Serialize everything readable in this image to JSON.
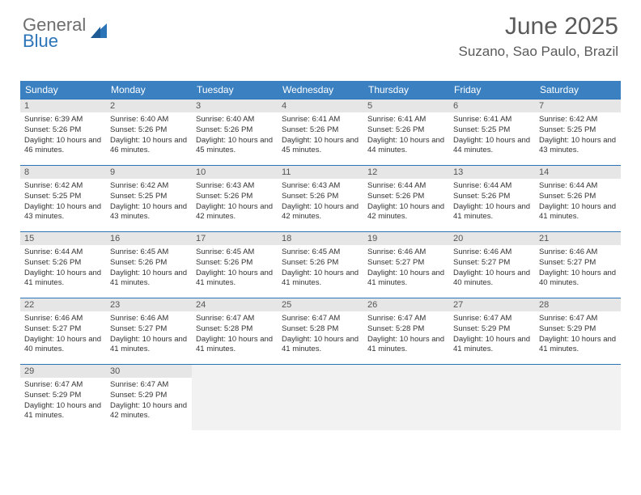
{
  "logo": {
    "text1": "General",
    "text2": "Blue"
  },
  "title": "June 2025",
  "location": "Suzano, Sao Paulo, Brazil",
  "colors": {
    "header_bg": "#3b81c2",
    "header_text": "#ffffff",
    "border": "#2b74b8",
    "daynum_bg": "#e6e6e6",
    "empty_bg": "#f2f2f2",
    "title_color": "#5a5a5a"
  },
  "weekdays": [
    "Sunday",
    "Monday",
    "Tuesday",
    "Wednesday",
    "Thursday",
    "Friday",
    "Saturday"
  ],
  "weeks": [
    [
      {
        "n": "1",
        "sr": "Sunrise: 6:39 AM",
        "ss": "Sunset: 5:26 PM",
        "dl": "Daylight: 10 hours and 46 minutes."
      },
      {
        "n": "2",
        "sr": "Sunrise: 6:40 AM",
        "ss": "Sunset: 5:26 PM",
        "dl": "Daylight: 10 hours and 46 minutes."
      },
      {
        "n": "3",
        "sr": "Sunrise: 6:40 AM",
        "ss": "Sunset: 5:26 PM",
        "dl": "Daylight: 10 hours and 45 minutes."
      },
      {
        "n": "4",
        "sr": "Sunrise: 6:41 AM",
        "ss": "Sunset: 5:26 PM",
        "dl": "Daylight: 10 hours and 45 minutes."
      },
      {
        "n": "5",
        "sr": "Sunrise: 6:41 AM",
        "ss": "Sunset: 5:26 PM",
        "dl": "Daylight: 10 hours and 44 minutes."
      },
      {
        "n": "6",
        "sr": "Sunrise: 6:41 AM",
        "ss": "Sunset: 5:25 PM",
        "dl": "Daylight: 10 hours and 44 minutes."
      },
      {
        "n": "7",
        "sr": "Sunrise: 6:42 AM",
        "ss": "Sunset: 5:25 PM",
        "dl": "Daylight: 10 hours and 43 minutes."
      }
    ],
    [
      {
        "n": "8",
        "sr": "Sunrise: 6:42 AM",
        "ss": "Sunset: 5:25 PM",
        "dl": "Daylight: 10 hours and 43 minutes."
      },
      {
        "n": "9",
        "sr": "Sunrise: 6:42 AM",
        "ss": "Sunset: 5:25 PM",
        "dl": "Daylight: 10 hours and 43 minutes."
      },
      {
        "n": "10",
        "sr": "Sunrise: 6:43 AM",
        "ss": "Sunset: 5:26 PM",
        "dl": "Daylight: 10 hours and 42 minutes."
      },
      {
        "n": "11",
        "sr": "Sunrise: 6:43 AM",
        "ss": "Sunset: 5:26 PM",
        "dl": "Daylight: 10 hours and 42 minutes."
      },
      {
        "n": "12",
        "sr": "Sunrise: 6:44 AM",
        "ss": "Sunset: 5:26 PM",
        "dl": "Daylight: 10 hours and 42 minutes."
      },
      {
        "n": "13",
        "sr": "Sunrise: 6:44 AM",
        "ss": "Sunset: 5:26 PM",
        "dl": "Daylight: 10 hours and 41 minutes."
      },
      {
        "n": "14",
        "sr": "Sunrise: 6:44 AM",
        "ss": "Sunset: 5:26 PM",
        "dl": "Daylight: 10 hours and 41 minutes."
      }
    ],
    [
      {
        "n": "15",
        "sr": "Sunrise: 6:44 AM",
        "ss": "Sunset: 5:26 PM",
        "dl": "Daylight: 10 hours and 41 minutes."
      },
      {
        "n": "16",
        "sr": "Sunrise: 6:45 AM",
        "ss": "Sunset: 5:26 PM",
        "dl": "Daylight: 10 hours and 41 minutes."
      },
      {
        "n": "17",
        "sr": "Sunrise: 6:45 AM",
        "ss": "Sunset: 5:26 PM",
        "dl": "Daylight: 10 hours and 41 minutes."
      },
      {
        "n": "18",
        "sr": "Sunrise: 6:45 AM",
        "ss": "Sunset: 5:26 PM",
        "dl": "Daylight: 10 hours and 41 minutes."
      },
      {
        "n": "19",
        "sr": "Sunrise: 6:46 AM",
        "ss": "Sunset: 5:27 PM",
        "dl": "Daylight: 10 hours and 41 minutes."
      },
      {
        "n": "20",
        "sr": "Sunrise: 6:46 AM",
        "ss": "Sunset: 5:27 PM",
        "dl": "Daylight: 10 hours and 40 minutes."
      },
      {
        "n": "21",
        "sr": "Sunrise: 6:46 AM",
        "ss": "Sunset: 5:27 PM",
        "dl": "Daylight: 10 hours and 40 minutes."
      }
    ],
    [
      {
        "n": "22",
        "sr": "Sunrise: 6:46 AM",
        "ss": "Sunset: 5:27 PM",
        "dl": "Daylight: 10 hours and 40 minutes."
      },
      {
        "n": "23",
        "sr": "Sunrise: 6:46 AM",
        "ss": "Sunset: 5:27 PM",
        "dl": "Daylight: 10 hours and 41 minutes."
      },
      {
        "n": "24",
        "sr": "Sunrise: 6:47 AM",
        "ss": "Sunset: 5:28 PM",
        "dl": "Daylight: 10 hours and 41 minutes."
      },
      {
        "n": "25",
        "sr": "Sunrise: 6:47 AM",
        "ss": "Sunset: 5:28 PM",
        "dl": "Daylight: 10 hours and 41 minutes."
      },
      {
        "n": "26",
        "sr": "Sunrise: 6:47 AM",
        "ss": "Sunset: 5:28 PM",
        "dl": "Daylight: 10 hours and 41 minutes."
      },
      {
        "n": "27",
        "sr": "Sunrise: 6:47 AM",
        "ss": "Sunset: 5:29 PM",
        "dl": "Daylight: 10 hours and 41 minutes."
      },
      {
        "n": "28",
        "sr": "Sunrise: 6:47 AM",
        "ss": "Sunset: 5:29 PM",
        "dl": "Daylight: 10 hours and 41 minutes."
      }
    ],
    [
      {
        "n": "29",
        "sr": "Sunrise: 6:47 AM",
        "ss": "Sunset: 5:29 PM",
        "dl": "Daylight: 10 hours and 41 minutes."
      },
      {
        "n": "30",
        "sr": "Sunrise: 6:47 AM",
        "ss": "Sunset: 5:29 PM",
        "dl": "Daylight: 10 hours and 42 minutes."
      },
      null,
      null,
      null,
      null,
      null
    ]
  ]
}
